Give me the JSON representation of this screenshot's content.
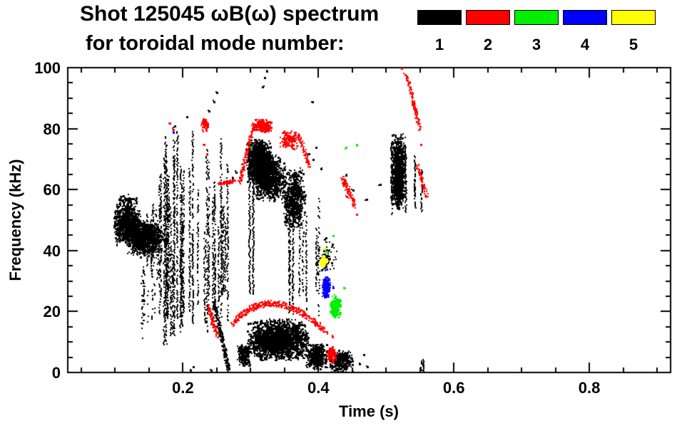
{
  "chart_data": {
    "type": "scatter",
    "title": "Shot 125045 ωB(ω) spectrum",
    "subtitle": "for toroidal mode number:",
    "xlabel": "Time (s)",
    "ylabel": "Frequency (kHz)",
    "xlim": [
      0.03,
      0.92
    ],
    "ylim": [
      0,
      100
    ],
    "xticks": [
      0.2,
      0.4,
      0.6,
      0.8
    ],
    "xtick_labels": [
      "0.2",
      "0.4",
      "0.6",
      "0.8"
    ],
    "yticks": [
      0,
      20,
      40,
      60,
      80,
      100
    ],
    "ytick_labels": [
      "0",
      "20",
      "40",
      "60",
      "80",
      "100"
    ],
    "x_minor_step": 0.05,
    "y_minor_step": 5,
    "grid": false,
    "legend_position": "top-right",
    "legend": [
      {
        "label": "1",
        "color": "#000000"
      },
      {
        "label": "2",
        "color": "#ff0000"
      },
      {
        "label": "3",
        "color": "#00ee00"
      },
      {
        "label": "4",
        "color": "#0000ff"
      },
      {
        "label": "5",
        "color": "#ffff00"
      }
    ],
    "clusters": [
      {
        "mode": 1,
        "kind": "blob",
        "t": [
          0.096,
          0.138
        ],
        "f": [
          42,
          56
        ],
        "n": 1000
      },
      {
        "mode": 1,
        "kind": "blob",
        "t": [
          0.112,
          0.172
        ],
        "f": [
          38,
          50
        ],
        "n": 950
      },
      {
        "mode": 1,
        "kind": "blob",
        "t": [
          0.1,
          0.132
        ],
        "f": [
          54,
          59
        ],
        "n": 70
      },
      {
        "mode": 1,
        "kind": "streaks",
        "t": [
          0.1,
          0.17
        ],
        "ftop": [
          48,
          57
        ],
        "fbot": [
          30,
          40
        ],
        "k": 10,
        "density": 0.45
      },
      {
        "mode": 1,
        "kind": "streaks",
        "t": [
          0.138,
          0.168
        ],
        "ftop": [
          26,
          38
        ],
        "fbot": [
          10,
          20
        ],
        "k": 6,
        "density": 0.35
      },
      {
        "mode": 1,
        "kind": "streaks",
        "t": [
          0.163,
          0.265
        ],
        "ftop": [
          42,
          80
        ],
        "fbot": [
          7,
          28
        ],
        "k": 34,
        "density": 0.6
      },
      {
        "mode": 1,
        "kind": "dots",
        "pts": [
          [
            0.205,
            84
          ],
          [
            0.237,
            86
          ],
          [
            0.245,
            89
          ],
          [
            0.249,
            92
          ],
          [
            0.187,
            81
          ],
          [
            0.32,
            97
          ],
          [
            0.323,
            99
          ],
          [
            0.317,
            94
          ],
          [
            0.39,
            89
          ],
          [
            0.272,
            64
          ],
          [
            0.277,
            66
          ],
          [
            0.21,
            1
          ],
          [
            0.214,
            2
          ],
          [
            0.241,
            1
          ],
          [
            0.385,
            72
          ],
          [
            0.391,
            70
          ],
          [
            0.396,
            74
          ],
          [
            0.403,
            67
          ],
          [
            0.45,
            60
          ],
          [
            0.47,
            57
          ],
          [
            0.49,
            62
          ],
          [
            0.44,
            65
          ],
          [
            0.46,
            3
          ],
          [
            0.466,
            6
          ],
          [
            0.471,
            2
          ]
        ]
      },
      {
        "mode": 1,
        "kind": "blob",
        "t": [
          0.292,
          0.332
        ],
        "f": [
          62,
          77
        ],
        "n": 1300
      },
      {
        "mode": 1,
        "kind": "blob",
        "t": [
          0.3,
          0.352
        ],
        "f": [
          56,
          72
        ],
        "n": 900
      },
      {
        "mode": 1,
        "kind": "blob",
        "t": [
          0.345,
          0.38
        ],
        "f": [
          47,
          68
        ],
        "n": 650
      },
      {
        "mode": 1,
        "kind": "streaks",
        "t": [
          0.296,
          0.303
        ],
        "ftop": [
          73,
          77
        ],
        "fbot": [
          24,
          30
        ],
        "k": 2,
        "density": 0.9
      },
      {
        "mode": 1,
        "kind": "streaks",
        "t": [
          0.352,
          0.4
        ],
        "ftop": [
          40,
          62
        ],
        "fbot": [
          18,
          32
        ],
        "k": 11,
        "density": 0.5
      },
      {
        "mode": 1,
        "kind": "diag",
        "p": [
          [
            0.245,
            23
          ],
          [
            0.267,
            1
          ]
        ],
        "n": 260,
        "jitter": 1.6
      },
      {
        "mode": 1,
        "kind": "blob",
        "t": [
          0.279,
          0.3
        ],
        "f": [
          2,
          10
        ],
        "n": 260
      },
      {
        "mode": 1,
        "kind": "blob",
        "t": [
          0.294,
          0.386
        ],
        "f": [
          4,
          18
        ],
        "n": 2300
      },
      {
        "mode": 1,
        "kind": "blob",
        "t": [
          0.378,
          0.414
        ],
        "f": [
          1,
          10
        ],
        "n": 480
      },
      {
        "mode": 1,
        "kind": "blob",
        "t": [
          0.414,
          0.452
        ],
        "f": [
          0,
          8
        ],
        "n": 380
      },
      {
        "mode": 1,
        "kind": "blob",
        "t": [
          0.398,
          0.43
        ],
        "f": [
          32,
          46
        ],
        "n": 60
      },
      {
        "mode": 1,
        "kind": "blob",
        "t": [
          0.506,
          0.528
        ],
        "f": [
          53,
          79
        ],
        "n": 950
      },
      {
        "mode": 1,
        "kind": "streaks",
        "t": [
          0.506,
          0.53
        ],
        "ftop": [
          70,
          79
        ],
        "fbot": [
          52,
          60
        ],
        "k": 6,
        "density": 0.7
      },
      {
        "mode": 1,
        "kind": "streaks",
        "t": [
          0.534,
          0.553
        ],
        "ftop": [
          63,
          72
        ],
        "fbot": [
          53,
          60
        ],
        "k": 3,
        "density": 0.6
      },
      {
        "mode": 1,
        "kind": "streaks",
        "t": [
          0.545,
          0.566
        ],
        "ftop": [
          2,
          5
        ],
        "fbot": [
          0,
          1
        ],
        "k": 4,
        "density": 0.8
      },
      {
        "mode": 2,
        "kind": "arc",
        "p": [
          [
            0.271,
            16
          ],
          [
            0.33,
            31
          ],
          [
            0.413,
            13
          ]
        ],
        "n": 420,
        "jitter": 1.0
      },
      {
        "mode": 2,
        "kind": "diag",
        "p": [
          [
            0.236,
            22
          ],
          [
            0.25,
            12
          ]
        ],
        "n": 90,
        "jitter": 1.2
      },
      {
        "mode": 2,
        "kind": "blob",
        "t": [
          0.3,
          0.332
        ],
        "f": [
          79,
          83.5
        ],
        "n": 220
      },
      {
        "mode": 2,
        "kind": "diag",
        "p": [
          [
            0.283,
            63
          ],
          [
            0.301,
            79
          ]
        ],
        "n": 130,
        "jitter": 1.2
      },
      {
        "mode": 2,
        "kind": "diag",
        "p": [
          [
            0.252,
            62
          ],
          [
            0.277,
            63
          ]
        ],
        "n": 70,
        "jitter": 0.5
      },
      {
        "mode": 2,
        "kind": "blob",
        "t": [
          0.34,
          0.372
        ],
        "f": [
          73,
          80
        ],
        "n": 160
      },
      {
        "mode": 2,
        "kind": "diag",
        "p": [
          [
            0.37,
            78
          ],
          [
            0.386,
            68
          ]
        ],
        "n": 80,
        "jitter": 1.0
      },
      {
        "mode": 2,
        "kind": "diag",
        "p": [
          [
            0.434,
            64
          ],
          [
            0.453,
            55
          ]
        ],
        "n": 110,
        "jitter": 1.3
      },
      {
        "mode": 2,
        "kind": "diag",
        "p": [
          [
            0.53,
            97
          ],
          [
            0.549,
            80
          ]
        ],
        "n": 130,
        "jitter": 1.0
      },
      {
        "mode": 2,
        "kind": "diag",
        "p": [
          [
            0.545,
            68
          ],
          [
            0.559,
            58
          ]
        ],
        "n": 80,
        "jitter": 1.0
      },
      {
        "mode": 2,
        "kind": "blob",
        "t": [
          0.225,
          0.237
        ],
        "f": [
          79,
          84
        ],
        "n": 70
      },
      {
        "mode": 2,
        "kind": "blob",
        "t": [
          0.412,
          0.426
        ],
        "f": [
          3,
          9
        ],
        "n": 90
      },
      {
        "mode": 2,
        "kind": "dots",
        "pts": [
          [
            0.522,
            100
          ],
          [
            0.527,
            98
          ],
          [
            0.455,
            52
          ],
          [
            0.441,
            58
          ],
          [
            0.23,
            75
          ],
          [
            0.234,
            72
          ],
          [
            0.18,
            82
          ],
          [
            0.185,
            80
          ],
          [
            0.55,
            75
          ],
          [
            0.42,
            12
          ]
        ]
      },
      {
        "mode": 3,
        "kind": "blob",
        "t": [
          0.416,
          0.433
        ],
        "f": [
          18,
          26
        ],
        "n": 240
      },
      {
        "mode": 3,
        "kind": "dots",
        "pts": [
          [
            0.41,
            40
          ],
          [
            0.437,
            28
          ],
          [
            0.3,
            74
          ],
          [
            0.44,
            74
          ],
          [
            0.456,
            75
          ],
          [
            0.421,
            45
          ]
        ]
      },
      {
        "mode": 4,
        "kind": "blob",
        "t": [
          0.404,
          0.417
        ],
        "f": [
          24,
          32
        ],
        "n": 210
      },
      {
        "mode": 4,
        "kind": "dots",
        "pts": [
          [
            0.421,
            28
          ],
          [
            0.185,
            79
          ],
          [
            0.411,
            34
          ]
        ]
      },
      {
        "mode": 5,
        "kind": "blob",
        "t": [
          0.401,
          0.412
        ],
        "f": [
          34,
          39
        ],
        "n": 70
      },
      {
        "mode": 5,
        "kind": "dots",
        "pts": [
          [
            0.408,
            41
          ]
        ]
      }
    ]
  }
}
